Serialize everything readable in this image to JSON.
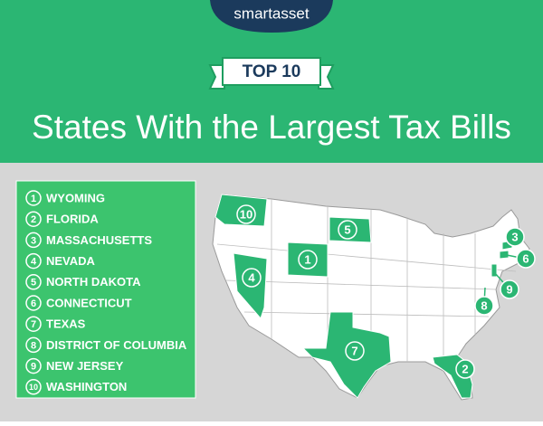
{
  "header": {
    "logo": "smartasset",
    "badge": "TOP 10",
    "title": "States With the Largest Tax Bills"
  },
  "list": [
    {
      "rank": 1,
      "name": "WYOMING"
    },
    {
      "rank": 2,
      "name": "FLORIDA"
    },
    {
      "rank": 3,
      "name": "MASSACHUSETTS"
    },
    {
      "rank": 4,
      "name": "NEVADA"
    },
    {
      "rank": 5,
      "name": "NORTH DAKOTA"
    },
    {
      "rank": 6,
      "name": "CONNECTICUT"
    },
    {
      "rank": 7,
      "name": "TEXAS"
    },
    {
      "rank": 8,
      "name": "DISTRICT OF COLUMBIA"
    },
    {
      "rank": 9,
      "name": "NEW JERSEY"
    },
    {
      "rank": 10,
      "name": "WASHINGTON"
    }
  ]
}
